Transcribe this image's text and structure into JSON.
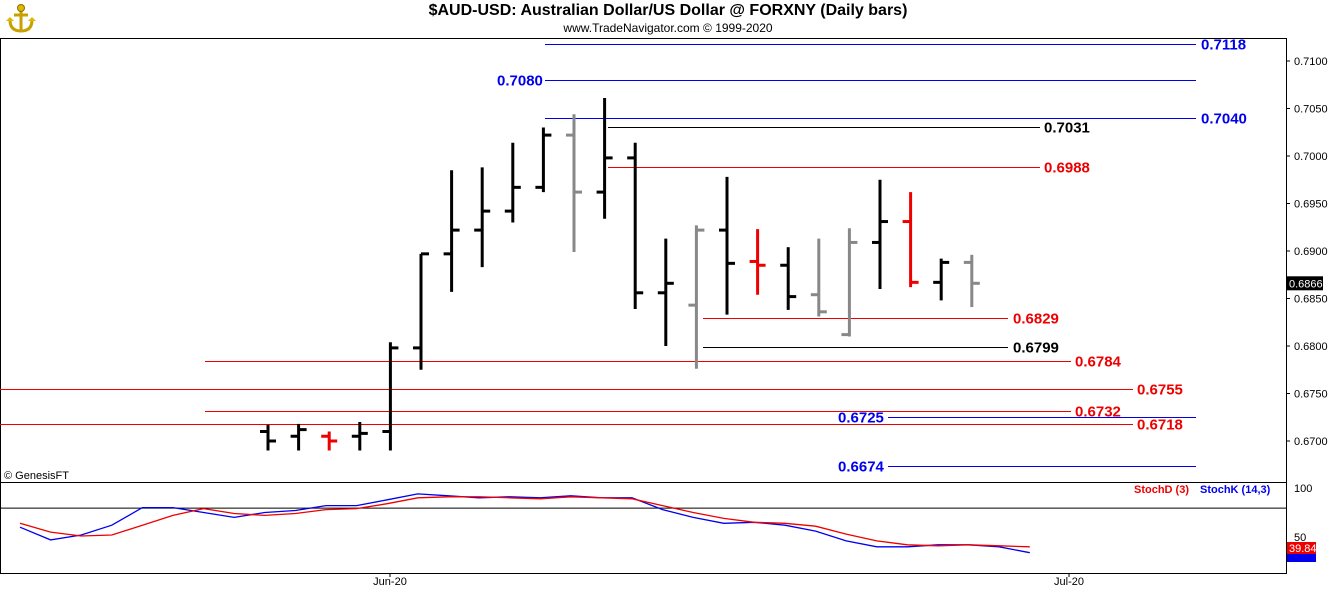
{
  "header": {
    "title": "$AUD-USD:  Australian Dollar/US Dollar @ FORXNY  (Daily bars)",
    "subtitle": "www.TradeNavigator.com © 1999-2020"
  },
  "footer": {
    "credit": "© GenesisFT"
  },
  "colors": {
    "blue": "#0000ee",
    "red": "#ee0000",
    "black": "#000000",
    "gray": "#888888",
    "stochK": "#0000ee",
    "stochD": "#ee0000"
  },
  "chart_data": [
    {
      "type": "ohlc",
      "ylim": [
        0.669,
        0.7128
      ],
      "yticks": [
        "0.7100",
        "0.7050",
        "0.7000",
        "0.6950",
        "0.6900",
        "0.6850",
        "0.6800",
        "0.6750",
        "0.6700"
      ],
      "ytick_values": [
        0.71,
        0.705,
        0.7,
        0.695,
        0.69,
        0.685,
        0.68,
        0.675,
        0.67
      ],
      "last_price": "0.6866",
      "xlabels": [
        "Jun-20",
        "Jul-20"
      ],
      "bars": [
        {
          "o": 0.671,
          "h": 0.6717,
          "l": 0.669,
          "c": 0.67,
          "color": "black"
        },
        {
          "o": 0.6705,
          "h": 0.6718,
          "l": 0.669,
          "c": 0.6712,
          "color": "black"
        },
        {
          "o": 0.6705,
          "h": 0.671,
          "l": 0.669,
          "c": 0.67,
          "color": "red"
        },
        {
          "o": 0.6705,
          "h": 0.672,
          "l": 0.669,
          "c": 0.6708,
          "color": "black"
        },
        {
          "o": 0.671,
          "h": 0.6804,
          "l": 0.669,
          "c": 0.6798,
          "color": "black"
        },
        {
          "o": 0.6798,
          "h": 0.6897,
          "l": 0.6775,
          "c": 0.6897,
          "color": "black"
        },
        {
          "o": 0.6897,
          "h": 0.6985,
          "l": 0.6857,
          "c": 0.6922,
          "color": "black"
        },
        {
          "o": 0.6922,
          "h": 0.6988,
          "l": 0.6883,
          "c": 0.6942,
          "color": "black"
        },
        {
          "o": 0.6942,
          "h": 0.7014,
          "l": 0.693,
          "c": 0.6967,
          "color": "black"
        },
        {
          "o": 0.6967,
          "h": 0.703,
          "l": 0.6962,
          "c": 0.7022,
          "color": "black"
        },
        {
          "o": 0.7022,
          "h": 0.7044,
          "l": 0.6899,
          "c": 0.6962,
          "color": "gray"
        },
        {
          "o": 0.6962,
          "h": 0.7061,
          "l": 0.6934,
          "c": 0.6998,
          "color": "black"
        },
        {
          "o": 0.6998,
          "h": 0.7014,
          "l": 0.6839,
          "c": 0.6856,
          "color": "black"
        },
        {
          "o": 0.6856,
          "h": 0.6913,
          "l": 0.68,
          "c": 0.6866,
          "color": "black"
        },
        {
          "o": 0.6843,
          "h": 0.6927,
          "l": 0.6776,
          "c": 0.6922,
          "color": "gray"
        },
        {
          "o": 0.6922,
          "h": 0.6978,
          "l": 0.6833,
          "c": 0.6887,
          "color": "black"
        },
        {
          "o": 0.6889,
          "h": 0.6923,
          "l": 0.6854,
          "c": 0.6885,
          "color": "red"
        },
        {
          "o": 0.6885,
          "h": 0.6904,
          "l": 0.6838,
          "c": 0.6852,
          "color": "black"
        },
        {
          "o": 0.6854,
          "h": 0.6913,
          "l": 0.6831,
          "c": 0.6836,
          "color": "gray"
        },
        {
          "o": 0.6812,
          "h": 0.6924,
          "l": 0.681,
          "c": 0.6909,
          "color": "gray"
        },
        {
          "o": 0.6909,
          "h": 0.6975,
          "l": 0.686,
          "c": 0.6931,
          "color": "black"
        },
        {
          "o": 0.6931,
          "h": 0.6962,
          "l": 0.6862,
          "c": 0.6867,
          "color": "red"
        },
        {
          "o": 0.6867,
          "h": 0.6892,
          "l": 0.6848,
          "c": 0.6888,
          "color": "black"
        },
        {
          "o": 0.6888,
          "h": 0.6896,
          "l": 0.6841,
          "c": 0.6866,
          "color": "gray"
        }
      ],
      "levels": [
        {
          "label": "0.7118",
          "value": 0.7118,
          "color": "blue"
        },
        {
          "label": "0.7080",
          "value": 0.708,
          "color": "blue"
        },
        {
          "label": "0.7040",
          "value": 0.704,
          "color": "blue"
        },
        {
          "label": "0.7031",
          "value": 0.7031,
          "color": "black"
        },
        {
          "label": "0.6988",
          "value": 0.6988,
          "color": "red"
        },
        {
          "label": "0.6829",
          "value": 0.6829,
          "color": "red"
        },
        {
          "label": "0.6799",
          "value": 0.6799,
          "color": "black"
        },
        {
          "label": "0.6784",
          "value": 0.6784,
          "color": "red"
        },
        {
          "label": "0.6755",
          "value": 0.6755,
          "color": "red"
        },
        {
          "label": "0.6732",
          "value": 0.6732,
          "color": "red"
        },
        {
          "label": "0.6725",
          "value": 0.6725,
          "color": "blue"
        },
        {
          "label": "0.6718",
          "value": 0.6718,
          "color": "red"
        },
        {
          "label": "0.6674",
          "value": 0.6674,
          "color": "blue"
        }
      ]
    },
    {
      "type": "line",
      "ylim": [
        25,
        107
      ],
      "yticks": [
        "100",
        "50"
      ],
      "ytick_values": [
        100,
        50
      ],
      "reference_line": 80,
      "legend": [
        "StochD (3)",
        "StochK (14,3)"
      ],
      "last_values": [
        "39.84",
        "34.78"
      ],
      "series": [
        {
          "name": "StochK (14,3)",
          "color": "stochK",
          "values": [
            60,
            47,
            52,
            62,
            80,
            80,
            75,
            70,
            75,
            77,
            82,
            82,
            88,
            94,
            92,
            90,
            91,
            90,
            92,
            90,
            90,
            78,
            70,
            64,
            65,
            62,
            56,
            46,
            40,
            40,
            42,
            42,
            40,
            34
          ]
        },
        {
          "name": "StochD (3)",
          "color": "stochD",
          "values": [
            64,
            55,
            51,
            52,
            62,
            72,
            79,
            74,
            72,
            74,
            78,
            79,
            84,
            90,
            91,
            91,
            90,
            89,
            91,
            90,
            89,
            82,
            75,
            69,
            65,
            64,
            61,
            53,
            46,
            42,
            41,
            42,
            41,
            40
          ]
        }
      ]
    }
  ]
}
